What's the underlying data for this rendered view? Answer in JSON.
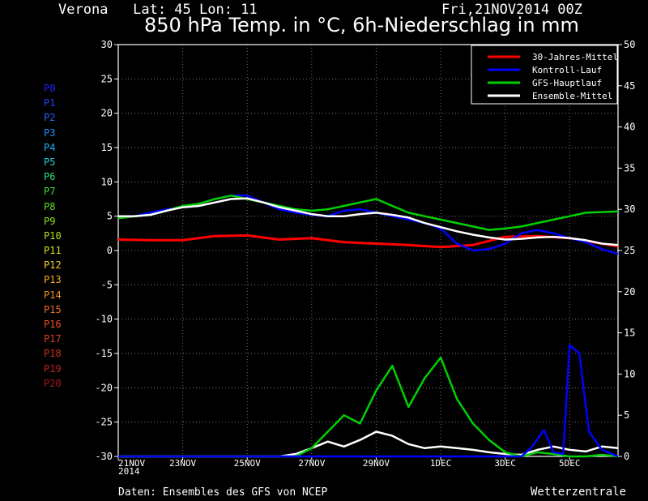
{
  "header": {
    "station": "Verona   Lat: 45 Lon: 11",
    "run": "Fri,21NOV2014 00Z",
    "title": "850 hPa Temp. in °C, 6h-Niederschlag in mm"
  },
  "footer": {
    "source": "Daten: Ensembles des GFS von NCEP",
    "brand": "Wetterzentrale"
  },
  "members": [
    {
      "label": "P0",
      "color": "#2020ff"
    },
    {
      "label": "P1",
      "color": "#2040ff"
    },
    {
      "label": "P2",
      "color": "#2060ff"
    },
    {
      "label": "P3",
      "color": "#2090ff"
    },
    {
      "label": "P4",
      "color": "#20b0ff"
    },
    {
      "label": "P5",
      "color": "#20d0d0"
    },
    {
      "label": "P6",
      "color": "#20e080"
    },
    {
      "label": "P7",
      "color": "#40e040"
    },
    {
      "label": "P8",
      "color": "#60e020"
    },
    {
      "label": "P9",
      "color": "#90e020"
    },
    {
      "label": "P10",
      "color": "#b0e020"
    },
    {
      "label": "P11",
      "color": "#e0e020"
    },
    {
      "label": "P12",
      "color": "#f0d020"
    },
    {
      "label": "P13",
      "color": "#f0b020"
    },
    {
      "label": "P14",
      "color": "#f09020"
    },
    {
      "label": "P15",
      "color": "#f07020"
    },
    {
      "label": "P16",
      "color": "#f05020"
    },
    {
      "label": "P17",
      "color": "#e04020"
    },
    {
      "label": "P18",
      "color": "#d03020"
    },
    {
      "label": "P19",
      "color": "#c02020"
    },
    {
      "label": "P20",
      "color": "#b01818"
    }
  ],
  "chart_data": {
    "type": "line",
    "x_dates": [
      "21NOV 2014",
      "23NOV",
      "25NOV",
      "27NOV",
      "29NOV",
      "1DEC",
      "3DEC",
      "5DEC"
    ],
    "x_range_days": [
      0,
      15.5
    ],
    "y_left_range": [
      -30,
      30
    ],
    "y_left_ticks": [
      -30,
      -25,
      -20,
      -15,
      -10,
      -5,
      0,
      5,
      10,
      15,
      20,
      25,
      30
    ],
    "y_right_range": [
      0,
      50
    ],
    "y_right_ticks": [
      0,
      5,
      10,
      15,
      20,
      25,
      30,
      35,
      40,
      45,
      50
    ],
    "grid": true,
    "legend_position": "top-right",
    "legend": [
      {
        "name": "30-Jahres-Mittel",
        "color": "#ff0000"
      },
      {
        "name": "Kontroll-Lauf",
        "color": "#0000ff"
      },
      {
        "name": "GFS-Hauptlauf",
        "color": "#00d000"
      },
      {
        "name": "Ensemble-Mittel",
        "color": "#ffffff"
      }
    ],
    "series": [
      {
        "name": "30-Jahres-Mittel",
        "axis": "left",
        "color": "#ff0000",
        "width": 3,
        "x": [
          0,
          1,
          2,
          3,
          4,
          5,
          6,
          7,
          8,
          9,
          10,
          11,
          12,
          13,
          14,
          15.5
        ],
        "y": [
          1.6,
          1.5,
          1.5,
          2.1,
          2.2,
          1.6,
          1.8,
          1.2,
          1.0,
          0.8,
          0.5,
          0.8,
          2.0,
          2.1,
          1.8,
          0.6
        ]
      },
      {
        "name": "Kontroll-Lauf",
        "axis": "left",
        "color": "#0000ff",
        "width": 2.5,
        "x": [
          0,
          0.5,
          1,
          1.5,
          2,
          2.5,
          3,
          3.5,
          4,
          4.5,
          5,
          5.5,
          6,
          6.5,
          7,
          7.5,
          8,
          8.5,
          9,
          9.5,
          10,
          10.5,
          11,
          11.5,
          12,
          12.5,
          13,
          13.5,
          14,
          14.5,
          15,
          15.5
        ],
        "y": [
          4.8,
          5.0,
          5.5,
          6.0,
          6.3,
          6.8,
          7.5,
          8.0,
          8.0,
          7.0,
          6.0,
          5.5,
          5.2,
          5.0,
          5.8,
          6.0,
          5.5,
          5.0,
          4.5,
          4.0,
          3.2,
          1.0,
          0.0,
          0.2,
          1.0,
          2.5,
          3.0,
          2.5,
          1.8,
          1.2,
          0.2,
          -0.5
        ]
      },
      {
        "name": "GFS-Hauptlauf",
        "axis": "left",
        "color": "#00d000",
        "width": 2.5,
        "x": [
          0,
          0.5,
          1,
          1.5,
          2,
          2.5,
          3,
          3.5,
          4,
          4.5,
          5,
          5.5,
          6,
          6.5,
          7,
          7.5,
          8,
          8.5,
          9,
          9.5,
          10,
          10.5,
          11,
          11.5,
          12,
          12.5,
          13,
          13.5,
          14,
          14.5,
          15,
          15.5
        ],
        "y": [
          4.7,
          5.0,
          5.2,
          5.8,
          6.5,
          6.8,
          7.5,
          8.0,
          7.5,
          7.0,
          6.5,
          6.0,
          5.8,
          6.0,
          6.5,
          7.0,
          7.5,
          6.5,
          5.5,
          5.0,
          4.5,
          4.0,
          3.5,
          3.0,
          3.2,
          3.5,
          4.0,
          4.5,
          5.0,
          5.5,
          5.6,
          5.7
        ]
      },
      {
        "name": "Ensemble-Mittel",
        "axis": "left",
        "color": "#ffffff",
        "width": 2.5,
        "x": [
          0,
          0.5,
          1,
          1.5,
          2,
          2.5,
          3,
          3.5,
          4,
          4.5,
          5,
          5.5,
          6,
          6.5,
          7,
          7.5,
          8,
          8.5,
          9,
          9.5,
          10,
          10.5,
          11,
          11.5,
          12,
          12.5,
          13,
          13.5,
          14,
          14.5,
          15,
          15.5
        ],
        "y": [
          5.0,
          5.0,
          5.2,
          5.8,
          6.3,
          6.5,
          7.0,
          7.5,
          7.6,
          7.0,
          6.3,
          5.8,
          5.3,
          5.0,
          5.0,
          5.3,
          5.5,
          5.2,
          4.8,
          4.0,
          3.4,
          2.8,
          2.3,
          1.9,
          1.6,
          1.7,
          1.9,
          2.0,
          1.8,
          1.5,
          1.0,
          0.8
        ]
      },
      {
        "name": "Ensemble-Mittel Niederschlag",
        "axis": "right",
        "color": "#ffffff",
        "width": 2.5,
        "x": [
          0,
          5,
          5.5,
          6,
          6.5,
          7,
          7.5,
          8,
          8.5,
          9,
          9.5,
          10,
          10.5,
          11,
          11.5,
          12,
          12.5,
          13,
          13.5,
          14,
          14.5,
          15,
          15.5
        ],
        "y": [
          0,
          0,
          0.3,
          1.0,
          1.8,
          1.2,
          2.0,
          3.0,
          2.5,
          1.5,
          1.0,
          1.2,
          1.0,
          0.8,
          0.5,
          0.3,
          0.2,
          0.8,
          1.2,
          0.8,
          0.6,
          1.2,
          1.0
        ]
      },
      {
        "name": "GFS-Hauptlauf Niederschlag",
        "axis": "right",
        "color": "#00d000",
        "width": 2.5,
        "x": [
          0,
          5.5,
          6,
          6.5,
          7,
          7.5,
          8,
          8.5,
          9,
          9.5,
          10,
          10.5,
          11,
          11.5,
          12,
          12.5,
          13,
          13.5,
          14,
          14.5,
          15,
          15.5
        ],
        "y": [
          0,
          0,
          1.0,
          3.0,
          5.0,
          4.0,
          8.0,
          11.0,
          6.0,
          9.5,
          12.0,
          7.0,
          4.0,
          2.0,
          0.5,
          0,
          0.5,
          0.3,
          0,
          0,
          0.2,
          0
        ]
      },
      {
        "name": "Kontroll-Lauf Niederschlag",
        "axis": "right",
        "color": "#0000ff",
        "width": 2.5,
        "x": [
          0,
          12.5,
          12.8,
          13.2,
          13.5,
          13.8,
          14,
          14.3,
          14.6,
          15,
          15.5
        ],
        "y": [
          0,
          0,
          1.0,
          3.2,
          0.5,
          0.3,
          13.5,
          12.5,
          3.0,
          0.8,
          0
        ]
      }
    ]
  }
}
